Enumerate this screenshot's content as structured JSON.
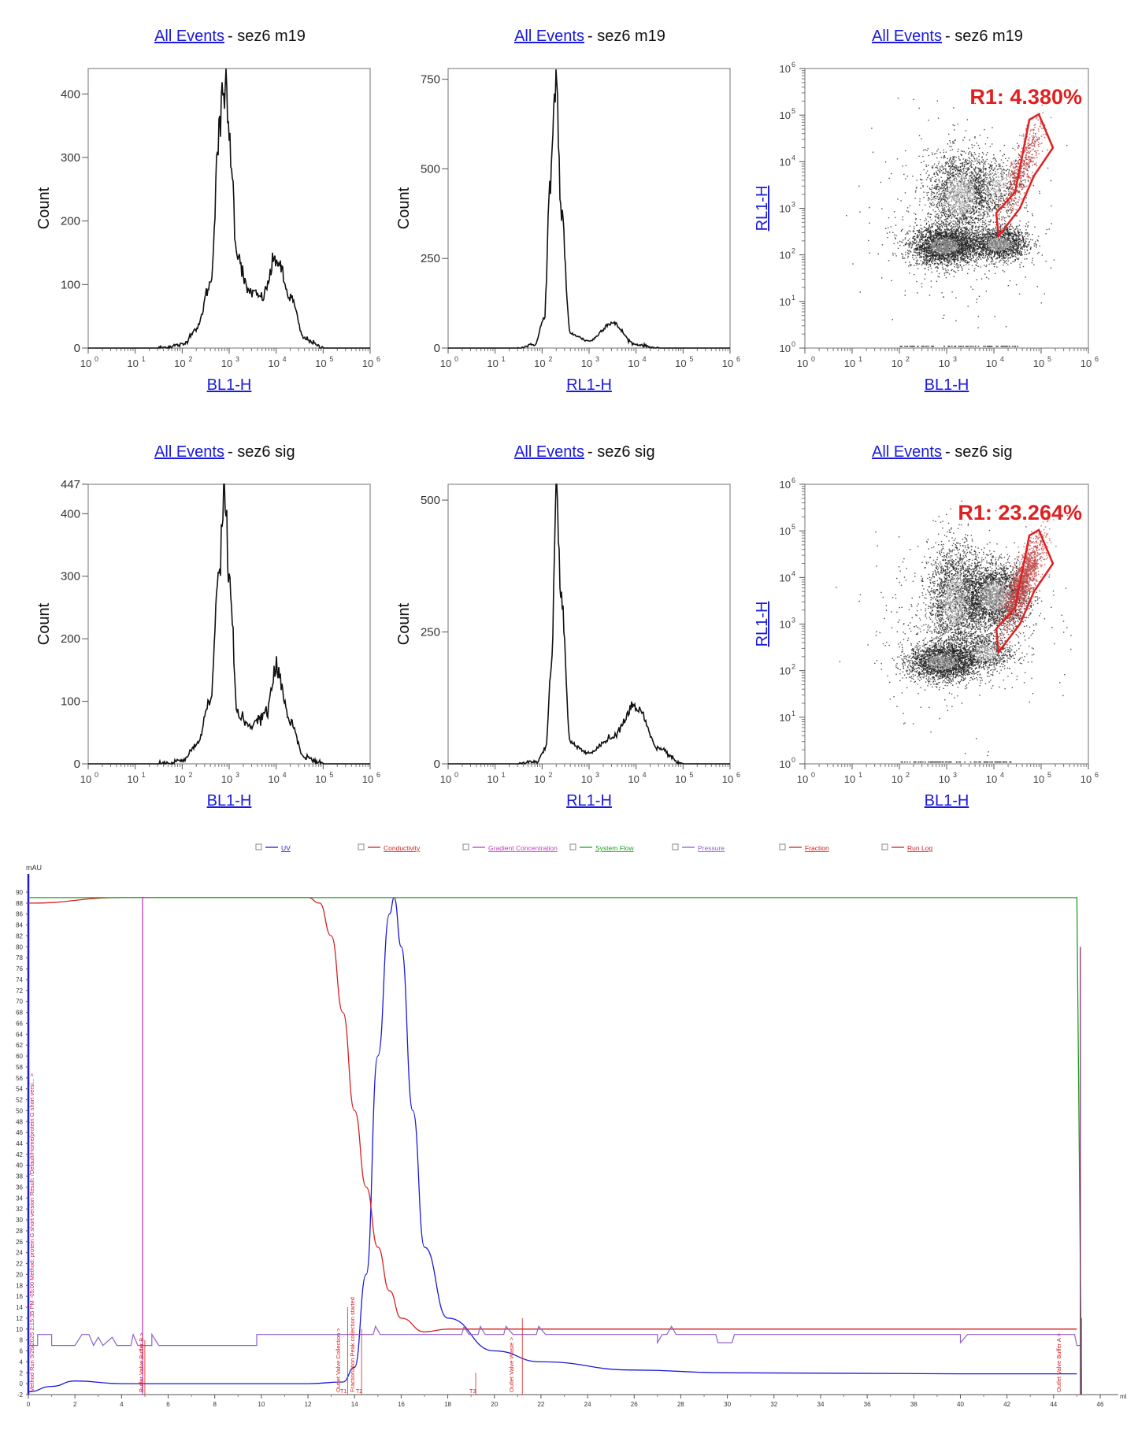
{
  "flow_panels": [
    {
      "id": "p1",
      "title_link": "All Events",
      "title_rest": "- sez6 m19",
      "type": "histogram",
      "xlabel": "BL1-H",
      "ylabel": "Count",
      "xlim": [
        1,
        1000000
      ],
      "ylim": [
        0,
        440
      ],
      "yticks": [
        "0",
        "100",
        "200",
        "300",
        "400"
      ],
      "ytick_values": [
        0,
        100,
        200,
        300,
        400
      ]
    },
    {
      "id": "p2",
      "title_link": "All Events",
      "title_rest": "- sez6 m19",
      "type": "histogram",
      "xlabel": "RL1-H",
      "ylabel": "Count",
      "xlim": [
        1,
        1000000
      ],
      "ylim": [
        0,
        780
      ],
      "yticks": [
        "0",
        "250",
        "500",
        "750"
      ],
      "ytick_values": [
        0,
        250,
        500,
        750
      ]
    },
    {
      "id": "p3",
      "title_link": "All Events",
      "title_rest": "- sez6 m19",
      "type": "scatter",
      "xlabel": "BL1-H",
      "ylabel": "RL1-H",
      "gate_label": "R1: 4.380%",
      "gate_percent": 4.38
    },
    {
      "id": "p4",
      "title_link": "All Events",
      "title_rest": "- sez6 sig",
      "type": "histogram",
      "xlabel": "BL1-H",
      "ylabel": "Count",
      "xlim": [
        1,
        1000000
      ],
      "ylim": [
        0,
        447
      ],
      "yticks": [
        "0",
        "100",
        "200",
        "300",
        "400",
        "447"
      ],
      "ytick_values": [
        0,
        100,
        200,
        300,
        400,
        447
      ]
    },
    {
      "id": "p5",
      "title_link": "All Events",
      "title_rest": "- sez6 sig",
      "type": "histogram",
      "xlabel": "RL1-H",
      "ylabel": "Count",
      "xlim": [
        1,
        1000000
      ],
      "ylim": [
        0,
        530
      ],
      "yticks": [
        "0",
        "250",
        "500"
      ],
      "ytick_values": [
        0,
        250,
        500
      ]
    },
    {
      "id": "p6",
      "title_link": "All Events",
      "title_rest": "- sez6 sig",
      "type": "scatter",
      "xlabel": "BL1-H",
      "ylabel": "RL1-H",
      "gate_label": "R1: 23.264%",
      "gate_percent": 23.264
    }
  ],
  "log_tick_labels": [
    "10",
    "10",
    "10",
    "10",
    "10",
    "10",
    "10"
  ],
  "log_tick_exps": [
    "0",
    "1",
    "2",
    "3",
    "4",
    "5",
    "6"
  ],
  "chart_data": [
    {
      "type": "line",
      "panel": "p1",
      "title": "All Events - sez6 m19",
      "xlabel": "BL1-H",
      "ylabel": "Count",
      "x_scale": "log",
      "ylim": [
        0,
        440
      ],
      "series": [
        {
          "x": [
            30,
            100,
            200,
            400,
            600,
            800,
            1000,
            1500,
            2500,
            5000,
            10000,
            20000,
            40000,
            100000
          ],
          "values": [
            0,
            5,
            30,
            100,
            330,
            420,
            330,
            150,
            90,
            80,
            140,
            80,
            15,
            0
          ]
        }
      ]
    },
    {
      "type": "line",
      "panel": "p2",
      "title": "All Events - sez6 m19",
      "xlabel": "RL1-H",
      "ylabel": "Count",
      "x_scale": "log",
      "ylim": [
        0,
        780
      ],
      "series": [
        {
          "x": [
            30,
            70,
            110,
            150,
            200,
            250,
            400,
            1000,
            3000,
            10000,
            30000
          ],
          "values": [
            0,
            10,
            80,
            450,
            760,
            400,
            40,
            20,
            70,
            10,
            0
          ]
        }
      ]
    },
    {
      "type": "scatter",
      "panel": "p3",
      "title": "All Events - sez6 m19",
      "xlabel": "BL1-H",
      "ylabel": "RL1-H",
      "x_scale": "log",
      "y_scale": "log",
      "gates": [
        {
          "name": "R1",
          "percent": 4.38
        }
      ]
    },
    {
      "type": "line",
      "panel": "p4",
      "title": "All Events - sez6 sig",
      "xlabel": "BL1-H",
      "ylabel": "Count",
      "x_scale": "log",
      "ylim": [
        0,
        447
      ],
      "series": [
        {
          "x": [
            30,
            100,
            200,
            400,
            600,
            800,
            1000,
            1500,
            3000,
            6000,
            10000,
            20000,
            40000,
            100000
          ],
          "values": [
            0,
            5,
            30,
            100,
            300,
            440,
            300,
            80,
            60,
            80,
            150,
            70,
            10,
            0
          ]
        }
      ]
    },
    {
      "type": "line",
      "panel": "p5",
      "title": "All Events - sez6 sig",
      "xlabel": "RL1-H",
      "ylabel": "Count",
      "x_scale": "log",
      "ylim": [
        0,
        530
      ],
      "series": [
        {
          "x": [
            30,
            80,
            120,
            160,
            200,
            260,
            400,
            1000,
            3000,
            10000,
            30000,
            100000
          ],
          "values": [
            0,
            5,
            30,
            200,
            520,
            300,
            40,
            20,
            50,
            110,
            30,
            0
          ]
        }
      ]
    },
    {
      "type": "scatter",
      "panel": "p6",
      "title": "All Events - sez6 sig",
      "xlabel": "BL1-H",
      "ylabel": "RL1-H",
      "x_scale": "log",
      "y_scale": "log",
      "gates": [
        {
          "name": "R1",
          "percent": 23.264
        }
      ]
    },
    {
      "type": "line",
      "panel": "chromatogram",
      "ylabel": "mAU",
      "xlabel": "ml",
      "xlim": [
        0,
        48
      ],
      "ylim": [
        -2,
        92
      ],
      "legend": [
        {
          "name": "UV",
          "color": "#1a1adb"
        },
        {
          "name": "Conductivity",
          "color": "#d62020"
        },
        {
          "name": "Gradient Concentration",
          "color": "#c040c0"
        },
        {
          "name": "System Flow",
          "color": "#20a020"
        },
        {
          "name": "Pressure",
          "color": "#9060d0"
        },
        {
          "name": "Fraction",
          "color": "#d62020"
        },
        {
          "name": "Run Log",
          "color": "#d62020"
        }
      ],
      "series": [
        {
          "name": "UV",
          "x": [
            0,
            1,
            2,
            4,
            8,
            10,
            12,
            13.5,
            14,
            14.5,
            15,
            15.5,
            15.7,
            16,
            16.5,
            17,
            18,
            20,
            22,
            26,
            30,
            40,
            45
          ],
          "values": [
            -1.5,
            -0.5,
            0.5,
            0,
            0,
            0,
            0,
            0.3,
            3,
            20,
            60,
            86,
            89,
            80,
            50,
            25,
            12,
            6,
            4,
            2.5,
            2,
            1.8,
            1.8
          ]
        },
        {
          "name": "Conductivity",
          "x": [
            0,
            4,
            8,
            12,
            12.5,
            13,
            13.5,
            14,
            14.5,
            15,
            15.5,
            16,
            17,
            18,
            20,
            30,
            45
          ],
          "values": [
            88,
            89,
            89,
            89,
            88,
            82,
            68,
            50,
            36,
            25,
            17,
            12,
            9.5,
            10,
            10,
            10,
            10
          ]
        },
        {
          "name": "System Flow",
          "x": [
            0,
            45,
            45.2
          ],
          "values": [
            89,
            89,
            -2
          ]
        },
        {
          "name": "Pressure",
          "x": [
            0,
            0.4,
            1,
            1.5,
            5,
            10,
            14,
            20,
            30,
            40,
            45
          ],
          "values": [
            7,
            9,
            7,
            9,
            7,
            7,
            9,
            9,
            9,
            9,
            7
          ]
        }
      ],
      "annotations": [
        "Method Run 9/26/2025 2:15:35 PM -05:00 Method: protein G short version Result: /Default/Home/protein G short versi... >",
        "Buffer Valve Buffer B >",
        "Outlet Valve Collection >",
        "Fractionation Peak collection started",
        "Outlet Valve Waste >",
        "Outlet Valve Buffer A >",
        "Waste",
        "T1",
        "T2",
        "T3"
      ],
      "xticks": [
        "0",
        "2",
        "4",
        "6",
        "8",
        "10",
        "12",
        "14",
        "16",
        "18",
        "20",
        "22",
        "24",
        "26",
        "28",
        "30",
        "32",
        "34",
        "36",
        "38",
        "40",
        "42",
        "44",
        "46"
      ],
      "yticks": [
        "-2",
        "0",
        "2",
        "4",
        "6",
        "8",
        "10",
        "12",
        "14",
        "16",
        "18",
        "20",
        "22",
        "24",
        "26",
        "28",
        "30",
        "32",
        "34",
        "36",
        "38",
        "40",
        "42",
        "44",
        "46",
        "48",
        "50",
        "52",
        "54",
        "56",
        "58",
        "60",
        "62",
        "64",
        "66",
        "68",
        "70",
        "72",
        "74",
        "76",
        "78",
        "80",
        "82",
        "84",
        "86",
        "88",
        "90"
      ]
    }
  ]
}
